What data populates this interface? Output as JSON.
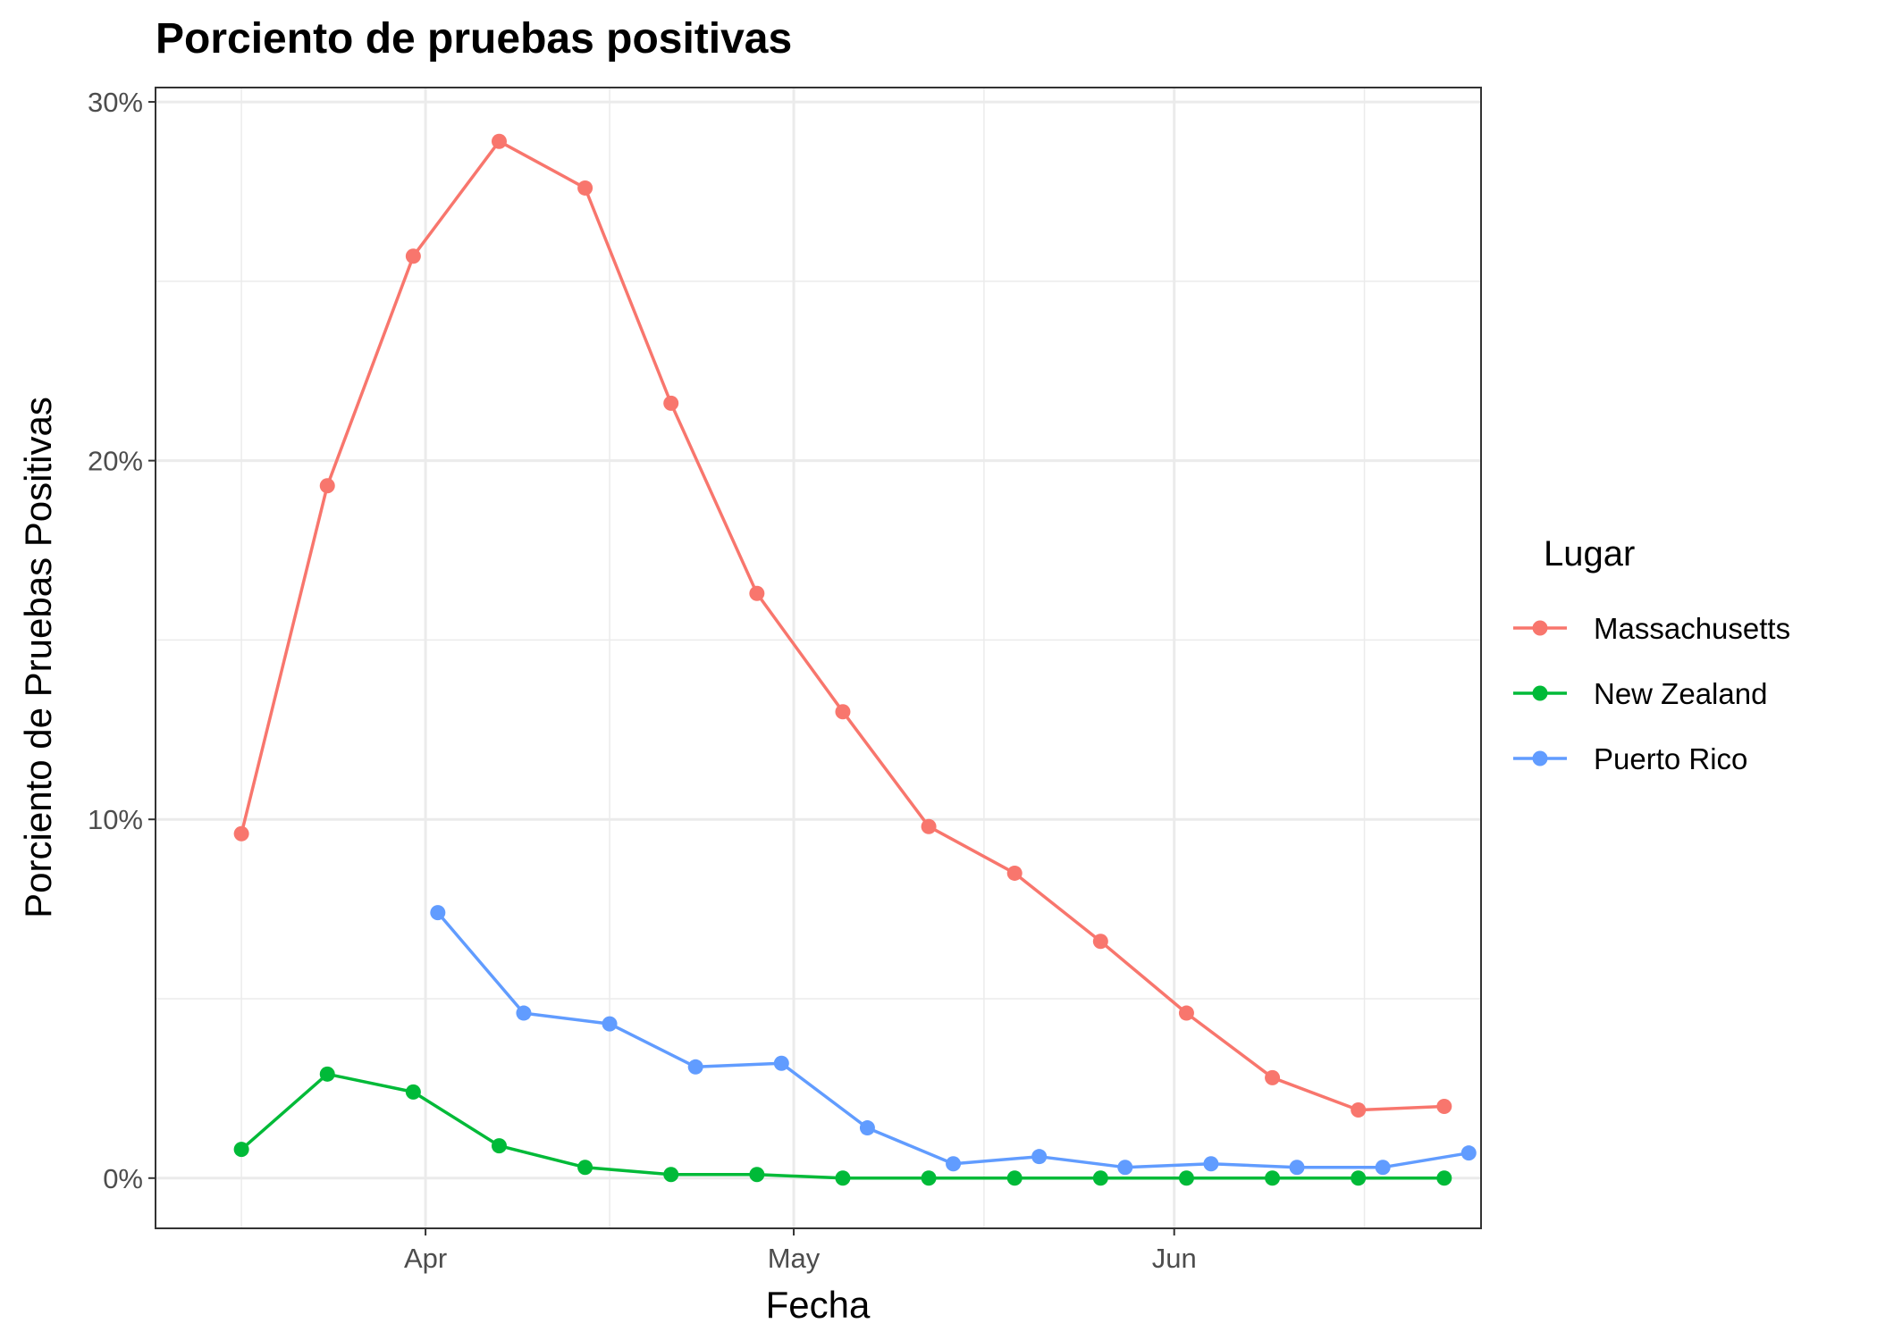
{
  "chart_data": {
    "type": "line",
    "title": "Porciento de pruebas positivas",
    "xlabel": "Fecha",
    "ylabel": "Porciento de Pruebas Positivas",
    "x_ticks": [
      {
        "date": "2020-04-01",
        "label": "Apr"
      },
      {
        "date": "2020-05-01",
        "label": "May"
      },
      {
        "date": "2020-06-01",
        "label": "Jun"
      }
    ],
    "xlim": [
      "2020-03-10",
      "2020-06-26"
    ],
    "y_ticks": [
      {
        "value": 0,
        "label": "0%"
      },
      {
        "value": 10,
        "label": "10%"
      },
      {
        "value": 20,
        "label": "20%"
      },
      {
        "value": 30,
        "label": "30%"
      }
    ],
    "ylim": [
      -1.4,
      30.4
    ],
    "grid": true,
    "legend_title": "Lugar",
    "legend_position": "right",
    "series": [
      {
        "name": "Massachusetts",
        "color": "#F8766D",
        "points": [
          {
            "x": "2020-03-17",
            "y": 9.6
          },
          {
            "x": "2020-03-24",
            "y": 19.3
          },
          {
            "x": "2020-03-31",
            "y": 25.7
          },
          {
            "x": "2020-04-07",
            "y": 28.9
          },
          {
            "x": "2020-04-14",
            "y": 27.6
          },
          {
            "x": "2020-04-21",
            "y": 21.6
          },
          {
            "x": "2020-04-28",
            "y": 16.3
          },
          {
            "x": "2020-05-05",
            "y": 13.0
          },
          {
            "x": "2020-05-12",
            "y": 9.8
          },
          {
            "x": "2020-05-19",
            "y": 8.5
          },
          {
            "x": "2020-05-26",
            "y": 6.6
          },
          {
            "x": "2020-06-02",
            "y": 4.6
          },
          {
            "x": "2020-06-09",
            "y": 2.8
          },
          {
            "x": "2020-06-16",
            "y": 1.9
          },
          {
            "x": "2020-06-23",
            "y": 2.0
          }
        ]
      },
      {
        "name": "New Zealand",
        "color": "#00BA38",
        "points": [
          {
            "x": "2020-03-17",
            "y": 0.8
          },
          {
            "x": "2020-03-24",
            "y": 2.9
          },
          {
            "x": "2020-03-31",
            "y": 2.4
          },
          {
            "x": "2020-04-07",
            "y": 0.9
          },
          {
            "x": "2020-04-14",
            "y": 0.3
          },
          {
            "x": "2020-04-21",
            "y": 0.1
          },
          {
            "x": "2020-04-28",
            "y": 0.1
          },
          {
            "x": "2020-05-05",
            "y": 0.0
          },
          {
            "x": "2020-05-12",
            "y": 0.0
          },
          {
            "x": "2020-05-19",
            "y": 0.0
          },
          {
            "x": "2020-05-26",
            "y": 0.0
          },
          {
            "x": "2020-06-02",
            "y": 0.0
          },
          {
            "x": "2020-06-09",
            "y": 0.0
          },
          {
            "x": "2020-06-16",
            "y": 0.0
          },
          {
            "x": "2020-06-23",
            "y": 0.0
          }
        ]
      },
      {
        "name": "Puerto Rico",
        "color": "#619CFF",
        "points": [
          {
            "x": "2020-04-02",
            "y": 7.4
          },
          {
            "x": "2020-04-09",
            "y": 4.6
          },
          {
            "x": "2020-04-16",
            "y": 4.3
          },
          {
            "x": "2020-04-23",
            "y": 3.1
          },
          {
            "x": "2020-04-30",
            "y": 3.2
          },
          {
            "x": "2020-05-07",
            "y": 1.4
          },
          {
            "x": "2020-05-14",
            "y": 0.4
          },
          {
            "x": "2020-05-21",
            "y": 0.6
          },
          {
            "x": "2020-05-28",
            "y": 0.3
          },
          {
            "x": "2020-06-04",
            "y": 0.4
          },
          {
            "x": "2020-06-11",
            "y": 0.3
          },
          {
            "x": "2020-06-18",
            "y": 0.3
          },
          {
            "x": "2020-06-25",
            "y": 0.7
          }
        ]
      }
    ]
  }
}
